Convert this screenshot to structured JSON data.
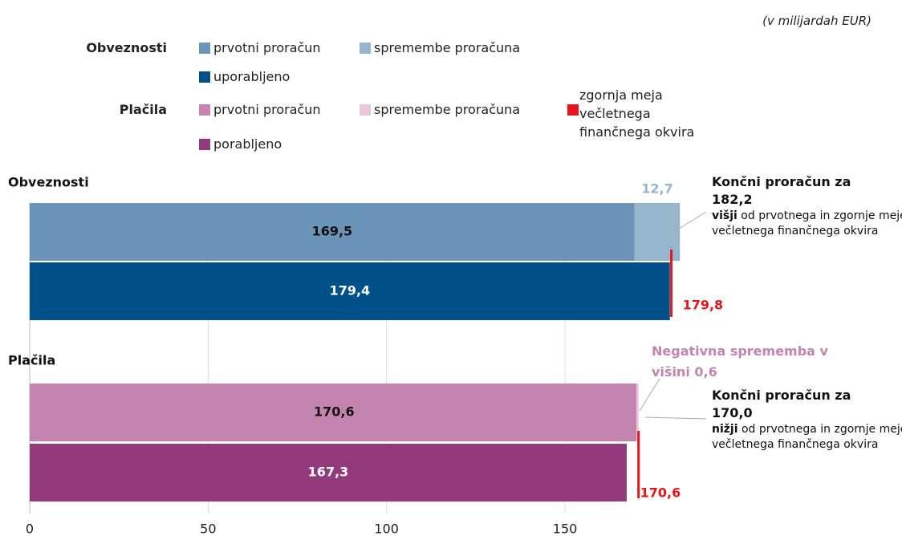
{
  "chart_data": {
    "type": "bar",
    "orientation": "horizontal",
    "unit_note": "(v milijardah EUR)",
    "xlim": [
      0,
      190
    ],
    "xticks": [
      0,
      50,
      100,
      150
    ],
    "grid": true,
    "ceiling_legend": {
      "name": "zgornja meja večletnega finančnega okvira",
      "color": "#e8141c"
    },
    "groups": [
      {
        "name": "Obveznosti",
        "series": [
          {
            "name": "prvotni proračun",
            "color": "#6a95b8",
            "values": [
              169.5
            ],
            "value_labels": [
              "169,5"
            ]
          },
          {
            "name": "spremembe proračuna",
            "color": "#96b4cc",
            "values": [
              12.7
            ],
            "value_labels": [
              "12,7"
            ]
          },
          {
            "name": "uporabljeno",
            "color": "#00508a",
            "values": [
              179.4
            ],
            "value_labels": [
              "179,4"
            ]
          }
        ],
        "ceiling": {
          "value": 179.8,
          "label": "179,8"
        },
        "annotation": {
          "title": "Končni proračun za 182,2",
          "emphasis": "višji",
          "text": " od prvotnega in zgornje meje večletnega finančnega okvira"
        }
      },
      {
        "name": "Plačila",
        "series": [
          {
            "name": "prvotni proračun",
            "color": "#c384b0",
            "values": [
              170.6
            ],
            "value_labels": [
              "170,6"
            ]
          },
          {
            "name": "spremembe proračuna",
            "color": "#e7c7dc",
            "values": [
              -0.6
            ]
          },
          {
            "name": "porabljeno",
            "color": "#933a7d",
            "values": [
              167.3
            ],
            "value_labels": [
              "167,3"
            ]
          }
        ],
        "change_note": "Negativna sprememba v višini 0,6",
        "ceiling": {
          "value": 170.6,
          "label": "170,6"
        },
        "annotation": {
          "title": "Končni proračun za 170,0",
          "emphasis": "nižji",
          "text": " od prvotnega in zgornje meje večletnega finančnega okvira"
        }
      }
    ]
  }
}
